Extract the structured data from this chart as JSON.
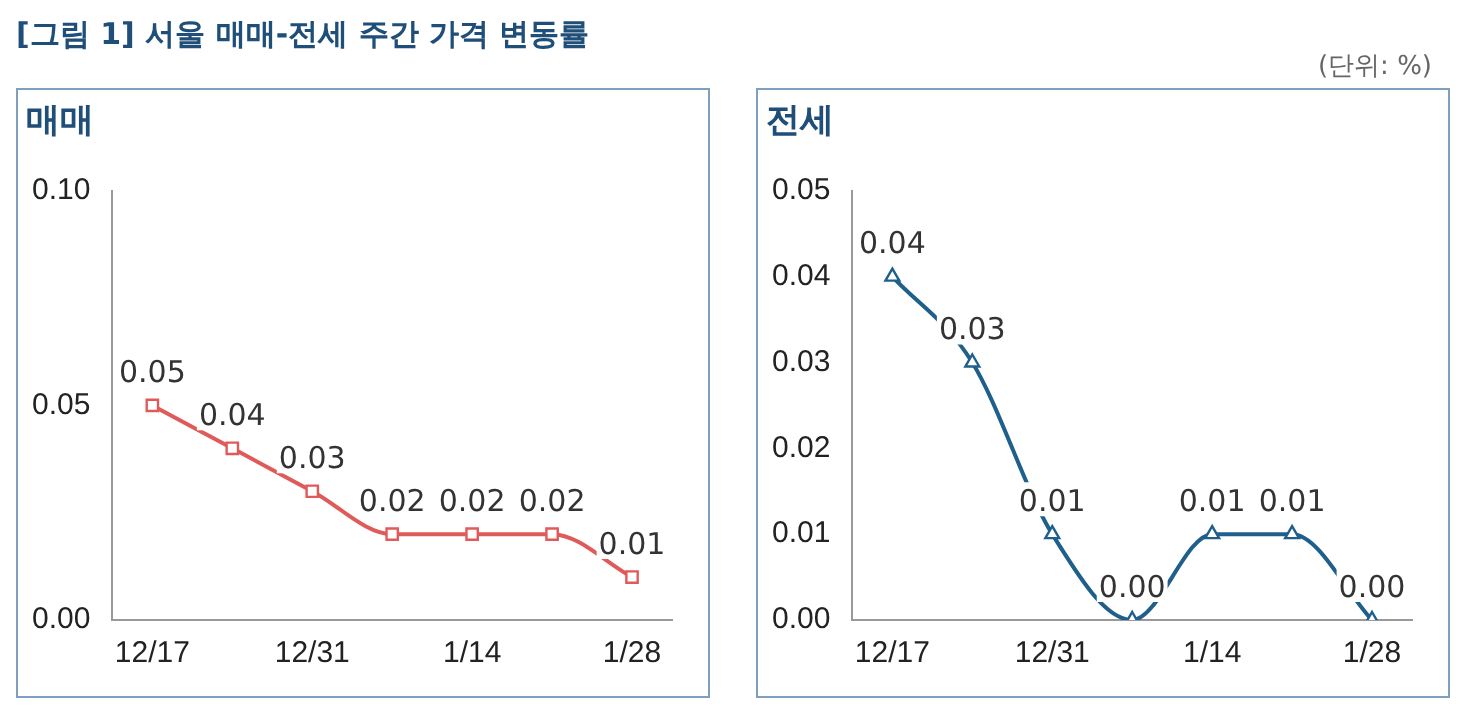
{
  "chart_data": [
    {
      "type": "line",
      "title": "매매",
      "annotations": [
        "[그림 1] 서울 매매-전세 주간 가격 변동률",
        "(단위: %)"
      ],
      "categories": [
        "12/17",
        null,
        "12/31",
        null,
        "1/14",
        null,
        "1/28"
      ],
      "series": [
        {
          "color": "#e05a5a",
          "values": [
            0.05,
            0.04,
            0.03,
            0.02,
            0.02,
            0.02,
            0.01
          ],
          "value_labels": [
            "0.05",
            "0.04",
            "0.03",
            "0.02",
            "0.02",
            "0.02",
            "0.01"
          ]
        }
      ],
      "ylim": [
        0,
        0.1
      ],
      "yticks": [
        {
          "value": 0,
          "label": "0.00"
        },
        {
          "value": 0.05,
          "label": "0.05"
        },
        {
          "value": 0.1,
          "label": "0.10"
        }
      ],
      "grid": false,
      "legend": false,
      "marker": "square",
      "line_style": "solid"
    },
    {
      "type": "line",
      "title": "전세",
      "categories": [
        "12/17",
        null,
        "12/31",
        null,
        "1/14",
        null,
        "1/28"
      ],
      "series": [
        {
          "color": "#1f5f8b",
          "values": [
            0.04,
            0.03,
            0.01,
            0,
            0.01,
            0.01,
            0
          ],
          "value_labels": [
            "0.04",
            "0.03",
            "0.01",
            "0.00",
            "0.01",
            "0.01",
            "0.00"
          ]
        }
      ],
      "ylim": [
        0,
        0.05
      ],
      "yticks": [
        {
          "value": 0,
          "label": "0.00"
        },
        {
          "value": 0.01,
          "label": "0.01"
        },
        {
          "value": 0.02,
          "label": "0.02"
        },
        {
          "value": 0.03,
          "label": "0.03"
        },
        {
          "value": 0.04,
          "label": "0.04"
        },
        {
          "value": 0.05,
          "label": "0.05"
        }
      ],
      "grid": false,
      "legend": false,
      "marker": "triangle",
      "line_style": "solid"
    }
  ]
}
